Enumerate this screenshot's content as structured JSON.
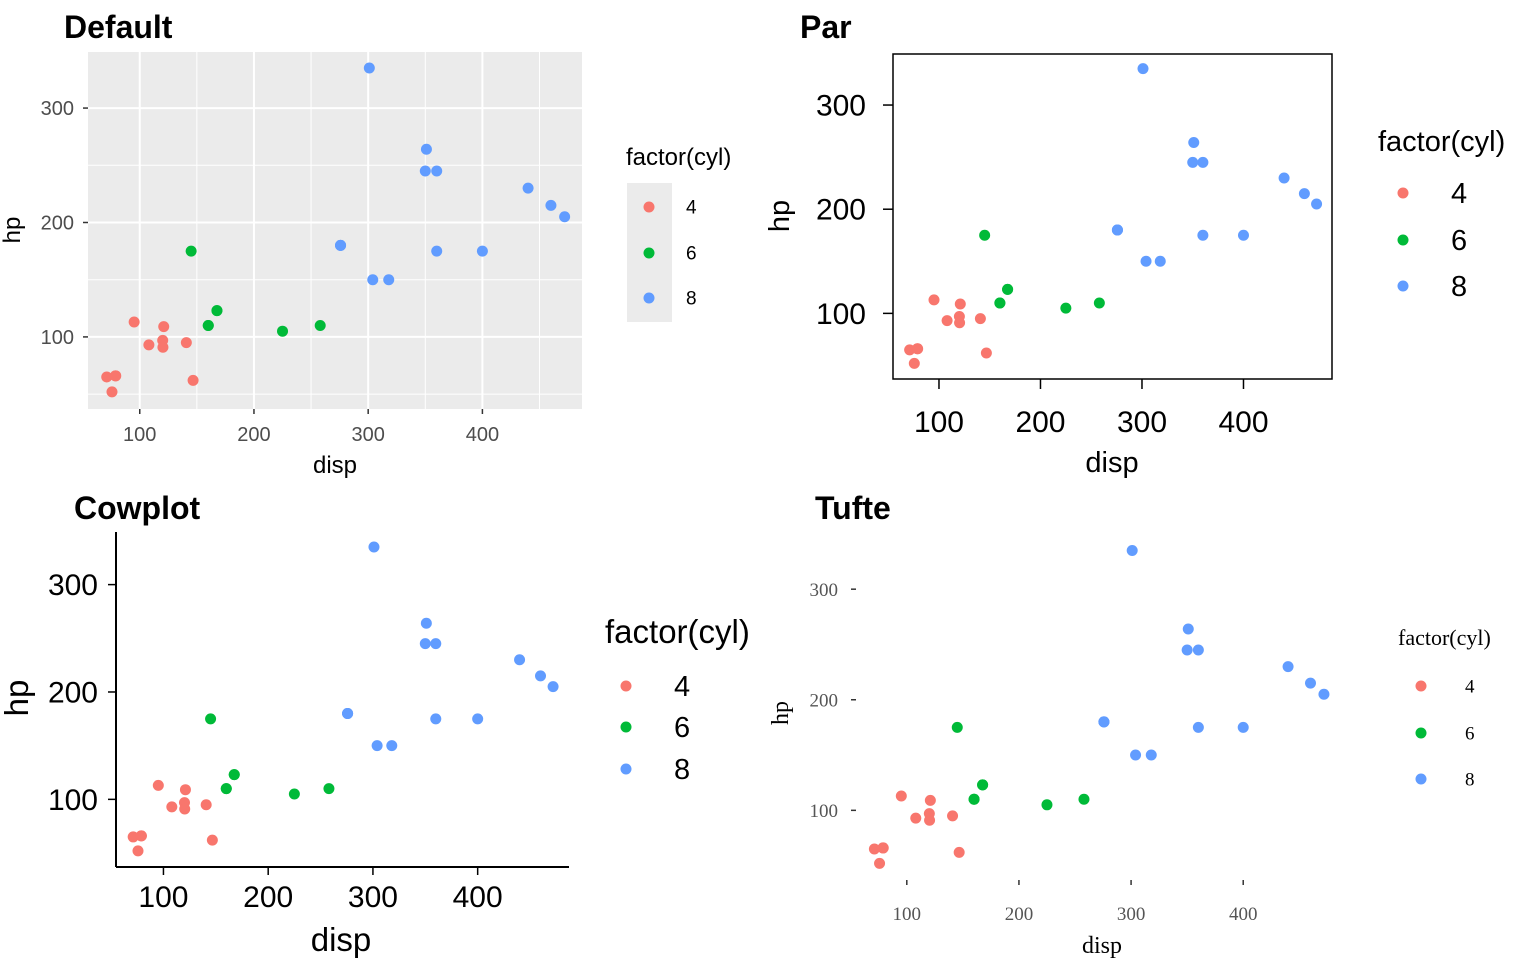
{
  "colors": {
    "cyl_4": "#F8766D",
    "cyl_6": "#00BA38",
    "cyl_8": "#619CFF",
    "panel_bg_default": "#EBEBEB",
    "grid_default": "#FFFFFF",
    "axis_text_default": "#4D4D4D",
    "tufte_axis_text": "#555555",
    "text": "#000000"
  },
  "chart_data": [
    {
      "type": "scatter",
      "title": "Default",
      "theme": "ggplot2 default (theme_gray)",
      "xlabel": "disp",
      "ylabel": "hp",
      "xlim": [
        54.7,
        487.2
      ],
      "ylim": [
        37,
        349
      ],
      "x_ticks": [
        "100",
        "200",
        "300",
        "400"
      ],
      "y_ticks": [
        "100",
        "200",
        "300"
      ],
      "grid": true,
      "legend": {
        "title": "factor(cyl)",
        "position": "right",
        "entries": [
          "4",
          "6",
          "8"
        ]
      },
      "series": [
        {
          "name": "4",
          "points": [
            [
              108,
              93
            ],
            [
              146.7,
              62
            ],
            [
              140.8,
              95
            ],
            [
              78.7,
              66
            ],
            [
              75.7,
              52
            ],
            [
              71.1,
              65
            ],
            [
              120.1,
              97
            ],
            [
              79,
              66
            ],
            [
              120.3,
              91
            ],
            [
              95.1,
              113
            ],
            [
              121,
              109
            ]
          ]
        },
        {
          "name": "6",
          "points": [
            [
              160,
              110
            ],
            [
              160,
              110
            ],
            [
              258,
              110
            ],
            [
              225,
              105
            ],
            [
              167.6,
              123
            ],
            [
              167.6,
              123
            ],
            [
              145,
              175
            ]
          ]
        },
        {
          "name": "8",
          "points": [
            [
              360,
              175
            ],
            [
              360,
              245
            ],
            [
              275.8,
              180
            ],
            [
              275.8,
              180
            ],
            [
              275.8,
              180
            ],
            [
              472,
              205
            ],
            [
              460,
              215
            ],
            [
              440,
              230
            ],
            [
              318,
              150
            ],
            [
              304,
              150
            ],
            [
              350,
              245
            ],
            [
              400,
              175
            ],
            [
              351,
              264
            ],
            [
              301,
              335
            ]
          ]
        }
      ]
    },
    {
      "type": "scatter",
      "title": "Par",
      "theme": "base graphics style (box frame, outside ticks)",
      "xlabel": "disp",
      "ylabel": "hp",
      "xlim": [
        54.7,
        487.2
      ],
      "ylim": [
        37,
        349
      ],
      "x_ticks": [
        "100",
        "200",
        "300",
        "400"
      ],
      "y_ticks": [
        "100",
        "200",
        "300"
      ],
      "grid": false,
      "legend": {
        "title": "factor(cyl)",
        "position": "right",
        "entries": [
          "4",
          "6",
          "8"
        ]
      },
      "series": [
        {
          "name": "4",
          "points": [
            [
              108,
              93
            ],
            [
              146.7,
              62
            ],
            [
              140.8,
              95
            ],
            [
              78.7,
              66
            ],
            [
              75.7,
              52
            ],
            [
              71.1,
              65
            ],
            [
              120.1,
              97
            ],
            [
              79,
              66
            ],
            [
              120.3,
              91
            ],
            [
              95.1,
              113
            ],
            [
              121,
              109
            ]
          ]
        },
        {
          "name": "6",
          "points": [
            [
              160,
              110
            ],
            [
              160,
              110
            ],
            [
              258,
              110
            ],
            [
              225,
              105
            ],
            [
              167.6,
              123
            ],
            [
              167.6,
              123
            ],
            [
              145,
              175
            ]
          ]
        },
        {
          "name": "8",
          "points": [
            [
              360,
              175
            ],
            [
              360,
              245
            ],
            [
              275.8,
              180
            ],
            [
              275.8,
              180
            ],
            [
              275.8,
              180
            ],
            [
              472,
              205
            ],
            [
              460,
              215
            ],
            [
              440,
              230
            ],
            [
              318,
              150
            ],
            [
              304,
              150
            ],
            [
              350,
              245
            ],
            [
              400,
              175
            ],
            [
              351,
              264
            ],
            [
              301,
              335
            ]
          ]
        }
      ]
    },
    {
      "type": "scatter",
      "title": "Cowplot",
      "theme": "cowplot (L-shaped axes, large text)",
      "xlabel": "disp",
      "ylabel": "hp",
      "xlim": [
        54.7,
        487.2
      ],
      "ylim": [
        37,
        349
      ],
      "x_ticks": [
        "100",
        "200",
        "300",
        "400"
      ],
      "y_ticks": [
        "100",
        "200",
        "300"
      ],
      "grid": false,
      "legend": {
        "title": "factor(cyl)",
        "position": "right",
        "entries": [
          "4",
          "6",
          "8"
        ]
      },
      "series": [
        {
          "name": "4",
          "points": [
            [
              108,
              93
            ],
            [
              146.7,
              62
            ],
            [
              140.8,
              95
            ],
            [
              78.7,
              66
            ],
            [
              75.7,
              52
            ],
            [
              71.1,
              65
            ],
            [
              120.1,
              97
            ],
            [
              79,
              66
            ],
            [
              120.3,
              91
            ],
            [
              95.1,
              113
            ],
            [
              121,
              109
            ]
          ]
        },
        {
          "name": "6",
          "points": [
            [
              160,
              110
            ],
            [
              160,
              110
            ],
            [
              258,
              110
            ],
            [
              225,
              105
            ],
            [
              167.6,
              123
            ],
            [
              167.6,
              123
            ],
            [
              145,
              175
            ]
          ]
        },
        {
          "name": "8",
          "points": [
            [
              360,
              175
            ],
            [
              360,
              245
            ],
            [
              275.8,
              180
            ],
            [
              275.8,
              180
            ],
            [
              275.8,
              180
            ],
            [
              472,
              205
            ],
            [
              460,
              215
            ],
            [
              440,
              230
            ],
            [
              318,
              150
            ],
            [
              304,
              150
            ],
            [
              350,
              245
            ],
            [
              400,
              175
            ],
            [
              351,
              264
            ],
            [
              301,
              335
            ]
          ]
        }
      ]
    },
    {
      "type": "scatter",
      "title": "Tufte",
      "theme": "Tufte (no axis lines, serif text)",
      "xlabel": "disp",
      "ylabel": "hp",
      "xlim": [
        54.7,
        487.2
      ],
      "ylim": [
        37,
        349
      ],
      "x_ticks": [
        "100",
        "200",
        "300",
        "400"
      ],
      "y_ticks": [
        "100",
        "200",
        "300"
      ],
      "grid": false,
      "legend": {
        "title": "factor(cyl)",
        "position": "right",
        "entries": [
          "4",
          "6",
          "8"
        ]
      },
      "series": [
        {
          "name": "4",
          "points": [
            [
              108,
              93
            ],
            [
              146.7,
              62
            ],
            [
              140.8,
              95
            ],
            [
              78.7,
              66
            ],
            [
              75.7,
              52
            ],
            [
              71.1,
              65
            ],
            [
              120.1,
              97
            ],
            [
              79,
              66
            ],
            [
              120.3,
              91
            ],
            [
              95.1,
              113
            ],
            [
              121,
              109
            ]
          ]
        },
        {
          "name": "6",
          "points": [
            [
              160,
              110
            ],
            [
              160,
              110
            ],
            [
              258,
              110
            ],
            [
              225,
              105
            ],
            [
              167.6,
              123
            ],
            [
              167.6,
              123
            ],
            [
              145,
              175
            ]
          ]
        },
        {
          "name": "8",
          "points": [
            [
              360,
              175
            ],
            [
              360,
              245
            ],
            [
              275.8,
              180
            ],
            [
              275.8,
              180
            ],
            [
              275.8,
              180
            ],
            [
              472,
              205
            ],
            [
              460,
              215
            ],
            [
              440,
              230
            ],
            [
              318,
              150
            ],
            [
              304,
              150
            ],
            [
              350,
              245
            ],
            [
              400,
              175
            ],
            [
              351,
              264
            ],
            [
              301,
              335
            ]
          ]
        }
      ]
    }
  ]
}
